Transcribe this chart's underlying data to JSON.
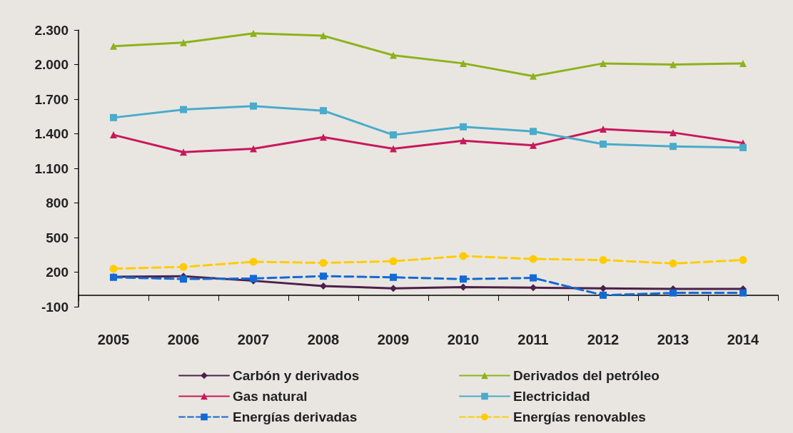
{
  "chart_data": {
    "type": "line",
    "categories": [
      "2005",
      "2006",
      "2007",
      "2008",
      "2009",
      "2010",
      "2011",
      "2012",
      "2013",
      "2014"
    ],
    "series": [
      {
        "name": "Carbón y derivados",
        "color": "#4d1f4a",
        "marker": "diamond",
        "line_style": "solid",
        "values": [
          160,
          165,
          125,
          80,
          60,
          70,
          65,
          60,
          55,
          55
        ]
      },
      {
        "name": "Derivados del petróleo",
        "color": "#8db21a",
        "marker": "triangle",
        "line_style": "solid",
        "values": [
          2160,
          2190,
          2270,
          2250,
          2080,
          2010,
          1900,
          2010,
          2000,
          2010
        ]
      },
      {
        "name": "Gas natural",
        "color": "#c8185c",
        "marker": "triangle",
        "line_style": "solid",
        "values": [
          1390,
          1240,
          1270,
          1370,
          1270,
          1340,
          1300,
          1440,
          1410,
          1320
        ]
      },
      {
        "name": "Electricidad",
        "color": "#4aabca",
        "marker": "square",
        "line_style": "solid",
        "values": [
          1540,
          1610,
          1640,
          1600,
          1390,
          1460,
          1420,
          1310,
          1290,
          1280
        ]
      },
      {
        "name": "Energías derivadas",
        "color": "#1469d4",
        "marker": "square",
        "line_style": "dashed",
        "values": [
          155,
          140,
          145,
          165,
          155,
          140,
          150,
          0,
          20,
          20
        ]
      },
      {
        "name": "Energías renovables",
        "color": "#ffcc00",
        "marker": "circle",
        "line_style": "dashed",
        "values": [
          230,
          245,
          290,
          280,
          295,
          340,
          315,
          305,
          275,
          305
        ]
      }
    ],
    "ylim": [
      -100,
      2300
    ],
    "yticks": [
      -100,
      200,
      500,
      800,
      {
        "value": 1100,
        "label": "1.100"
      },
      {
        "value": 1400,
        "label": "1.400"
      },
      {
        "value": 1700,
        "label": "1.700"
      },
      {
        "value": 2000,
        "label": "2.000"
      },
      {
        "value": 2300,
        "label": "2.300"
      }
    ],
    "grid": false,
    "legend": "bottom"
  }
}
